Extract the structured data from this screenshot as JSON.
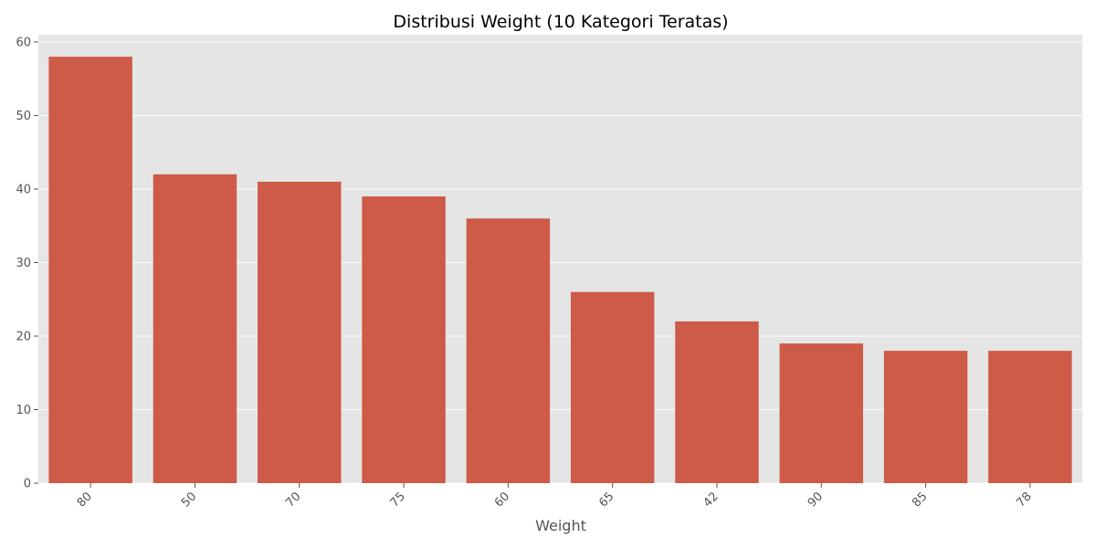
{
  "chart_data": {
    "type": "bar",
    "title": "Distribusi Weight (10 Kategori Teratas)",
    "xlabel": "Weight",
    "ylabel": "",
    "categories": [
      "80",
      "50",
      "70",
      "75",
      "60",
      "65",
      "42",
      "90",
      "85",
      "78"
    ],
    "values": [
      58,
      42,
      41,
      39,
      36,
      26,
      22,
      19,
      18,
      18
    ],
    "ylim": [
      0,
      60
    ],
    "yticks": [
      0,
      10,
      20,
      30,
      40,
      50,
      60
    ],
    "grid": true,
    "legend": "none",
    "bar_color": "#cd5b48",
    "background_color": "#e5e5e5",
    "grid_color": "#ffffff"
  }
}
